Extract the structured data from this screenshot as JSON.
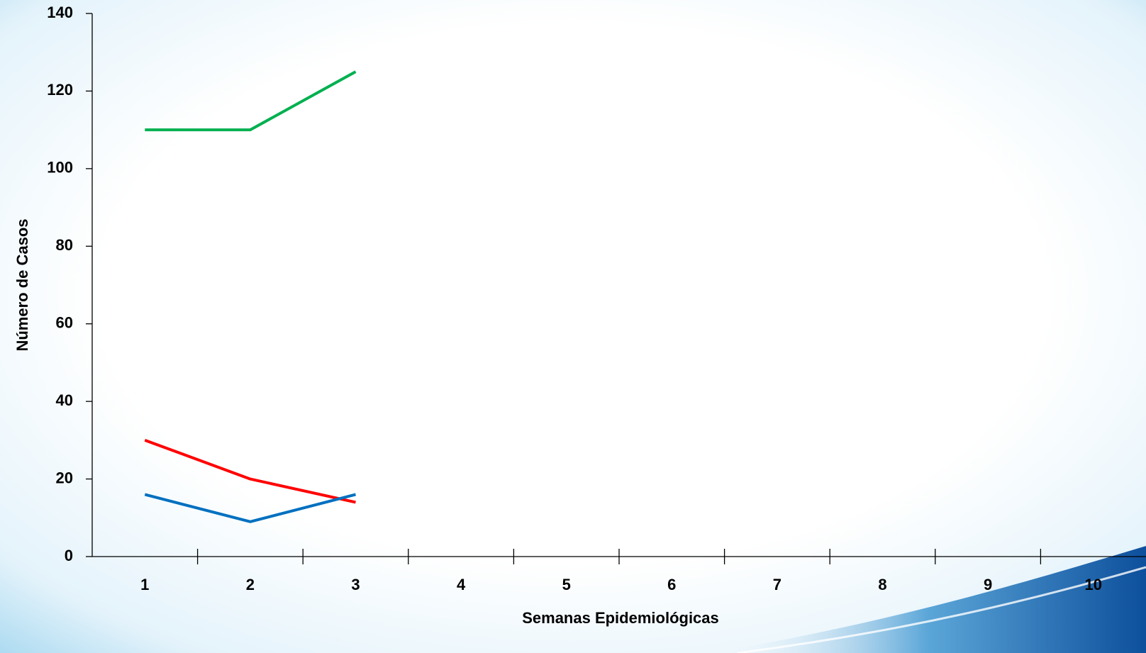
{
  "chart_data": {
    "type": "line",
    "x_label": "Semanas Epidemiológicas",
    "y_label": "Número de Casos",
    "categories": [
      "1",
      "2",
      "3",
      "4",
      "5",
      "6",
      "7",
      "8",
      "9",
      "10"
    ],
    "series": [
      {
        "color": "#00b050",
        "values": [
          110,
          110,
          125,
          null,
          null,
          null,
          null,
          null,
          null,
          null
        ]
      },
      {
        "color": "#ff0000",
        "values": [
          30,
          20,
          14,
          null,
          null,
          null,
          null,
          null,
          null,
          null
        ]
      },
      {
        "color": "#0070c0",
        "values": [
          16,
          9,
          16,
          null,
          null,
          null,
          null,
          null,
          null,
          null
        ]
      }
    ],
    "ylim": [
      0,
      140
    ],
    "yticks": [
      0,
      20,
      40,
      60,
      80,
      100,
      120,
      140
    ],
    "grid": false
  }
}
